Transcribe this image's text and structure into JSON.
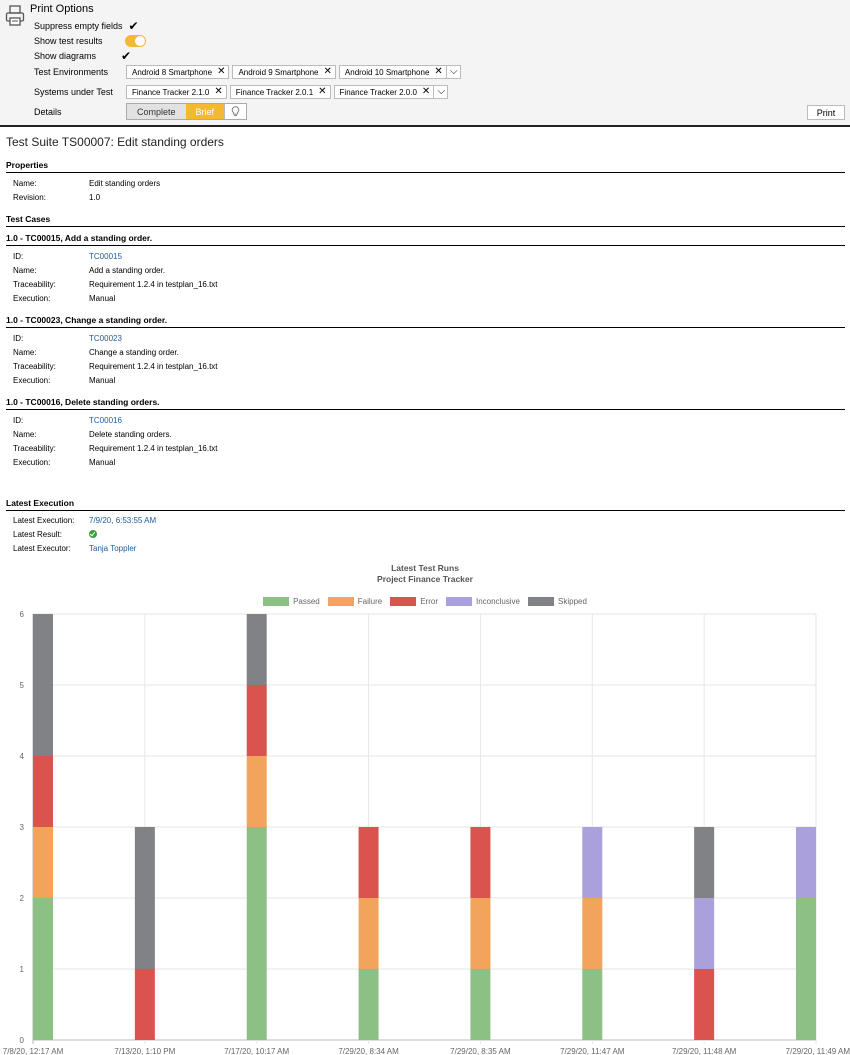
{
  "options": {
    "title": "Print Options",
    "suppress_label": "Suppress empty fields",
    "show_results_label": "Show test results",
    "show_diagrams_label": "Show diagrams",
    "envs_label": "Test Environments",
    "envs": [
      "Android 8 Smartphone",
      "Android 9 Smartphone",
      "Android 10 Smartphone"
    ],
    "sut_label": "Systems under Test",
    "suts": [
      "Finance Tracker 2.1.0",
      "Finance Tracker 2.0.1",
      "Finance Tracker 2.0.0"
    ],
    "details_label": "Details",
    "details_complete": "Complete",
    "details_brief": "Brief",
    "print_label": "Print"
  },
  "report": {
    "suite_title": "Test Suite TS00007: Edit standing orders",
    "properties_heading": "Properties",
    "name_label": "Name:",
    "name_value": "Edit standing orders",
    "revision_label": "Revision:",
    "revision_value": "1.0",
    "test_cases_heading": "Test Cases",
    "field_labels": {
      "id": "ID:",
      "name": "Name:",
      "traceability": "Traceability:",
      "execution": "Execution:"
    },
    "cases": [
      {
        "heading": "1.0 - TC00015, Add a standing order.",
        "id": "TC00015",
        "name": "Add a standing order.",
        "traceability": "Requirement 1.2.4 in testplan_16.txt",
        "execution": "Manual"
      },
      {
        "heading": "1.0 - TC00023, Change a standing order.",
        "id": "TC00023",
        "name": "Change a standing order.",
        "traceability": "Requirement 1.2.4 in testplan_16.txt",
        "execution": "Manual"
      },
      {
        "heading": "1.0 - TC00016, Delete standing orders.",
        "id": "TC00016",
        "name": "Delete standing orders.",
        "traceability": "Requirement 1.2.4 in testplan_16.txt",
        "execution": "Manual"
      }
    ],
    "latest_heading": "Latest Execution",
    "latest_execution_label": "Latest Execution:",
    "latest_execution_value": "7/9/20, 6:53:55 AM",
    "latest_result_label": "Latest Result:",
    "latest_executor_label": "Latest Executor:",
    "latest_executor_value": "Tanja Toppler"
  },
  "colors": {
    "accent": "#f4b832",
    "link": "#1f5c99",
    "passed": "#8cc084",
    "failure": "#f2a45a",
    "error": "#d9534f",
    "inconclusive": "#a9a0dc",
    "skipped": "#808285"
  },
  "chart_data": {
    "type": "bar",
    "stacked": true,
    "title": "Latest Test Runs",
    "subtitle": "Project Finance Tracker",
    "categories": [
      "7/8/20, 12:17 AM",
      "7/13/20, 1:10 PM",
      "7/17/20, 10:17 AM",
      "7/29/20, 8:34 AM",
      "7/29/20, 8:35 AM",
      "7/29/20, 11:47 AM",
      "7/29/20, 11:48 AM",
      "7/29/20, 11:49 AM"
    ],
    "series": [
      {
        "name": "Passed",
        "values": [
          2,
          0,
          3,
          1,
          1,
          1,
          0,
          2
        ]
      },
      {
        "name": "Failure",
        "values": [
          1,
          0,
          1,
          1,
          1,
          1,
          0,
          0
        ]
      },
      {
        "name": "Error",
        "values": [
          1,
          1,
          1,
          1,
          1,
          0,
          1,
          0
        ]
      },
      {
        "name": "Inconclusive",
        "values": [
          0,
          0,
          0,
          0,
          0,
          1,
          1,
          1
        ]
      },
      {
        "name": "Skipped",
        "values": [
          2,
          2,
          1,
          0,
          0,
          0,
          1,
          0
        ]
      }
    ],
    "yticks": [
      "0",
      "1",
      "2",
      "3",
      "4",
      "5",
      "6"
    ],
    "ylim": [
      0,
      6
    ],
    "grid": true,
    "legend": "top-center"
  }
}
